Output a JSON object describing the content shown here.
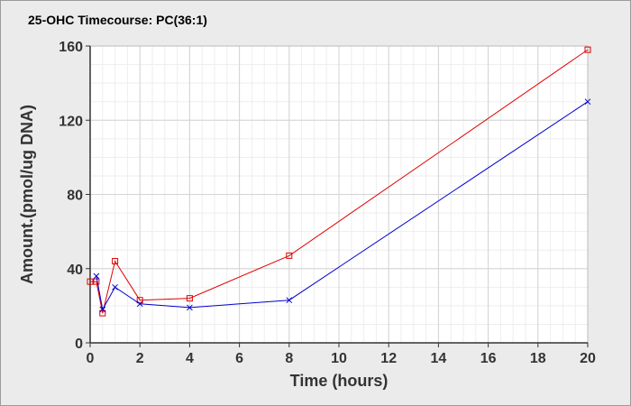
{
  "chart_data": {
    "type": "line",
    "title": "25-OHC Timecourse: PC(36:1)",
    "xlabel": "Time (hours)",
    "ylabel": "Amount.(pmol/ug DNA)",
    "xlim": [
      0,
      20
    ],
    "ylim": [
      0,
      160
    ],
    "xticks": [
      0,
      2,
      4,
      6,
      8,
      10,
      12,
      14,
      16,
      18,
      20
    ],
    "yticks": [
      0,
      40,
      80,
      120,
      160
    ],
    "grid": true,
    "legend": "none",
    "series": [
      {
        "color": "#e00000",
        "marker": "square",
        "x": [
          0,
          0.25,
          0.5,
          1,
          2,
          4,
          8,
          20
        ],
        "y": [
          33,
          33,
          16,
          44,
          23,
          24,
          47,
          158
        ]
      },
      {
        "color": "#0000cc",
        "marker": "x",
        "x": [
          0.25,
          0.5,
          1,
          2,
          4,
          8,
          20
        ],
        "y": [
          36,
          18,
          30,
          21,
          19,
          23,
          130
        ]
      }
    ]
  }
}
